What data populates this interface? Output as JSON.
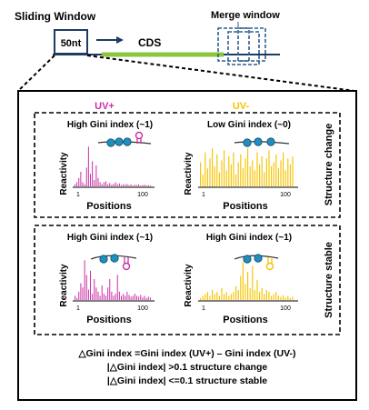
{
  "top": {
    "sliding_window_label": "Sliding Window",
    "window_box_label": "50nt",
    "cds_label": "CDS",
    "merge_window_label": "Merge window"
  },
  "columns": {
    "uv_plus": "UV+",
    "uv_minus": "UV-"
  },
  "panels": [
    {
      "row": "structure-change",
      "side_label": "Structure change",
      "plots": [
        {
          "title": "High Gini index (~1)",
          "ylabel": "Reactivity",
          "xlabel": "Positions",
          "ticks": [
            "1",
            "100"
          ],
          "color": "#cc2fa6",
          "values": [
            0.05,
            0.1,
            0.2,
            0.35,
            0.1,
            0.05,
            0.45,
            0.95,
            0.3,
            0.6,
            0.15,
            0.5,
            0.2,
            0.1,
            0.05,
            0.1,
            0.12,
            0.05,
            0.08,
            0.04,
            0.06,
            0.1,
            0.05,
            0.07,
            0.03,
            0.05,
            0.04,
            0.06,
            0.03,
            0.05,
            0.02,
            0.04,
            0.03,
            0.05,
            0.02,
            0.03,
            0.04,
            0.02,
            0.03,
            0.02
          ]
        },
        {
          "title": "Low Gini index (~0)",
          "ylabel": "Reactivity",
          "xlabel": "Positions",
          "ticks": [
            "1",
            "100"
          ],
          "color": "#f5c400",
          "values": [
            0.6,
            0.3,
            0.85,
            0.45,
            0.7,
            0.95,
            0.5,
            0.8,
            0.35,
            0.65,
            0.9,
            0.4,
            0.75,
            0.55,
            0.85,
            0.3,
            0.6,
            0.8,
            0.45,
            0.7,
            0.95,
            0.5,
            0.65,
            0.4,
            0.85,
            0.55,
            0.75,
            0.35,
            0.7,
            0.9,
            0.5,
            0.6,
            0.8,
            0.45,
            0.65,
            0.85,
            0.4,
            0.7,
            0.55,
            0.75
          ]
        }
      ]
    },
    {
      "row": "structure-stable",
      "side_label": "Structure stable",
      "plots": [
        {
          "title": "High Gini index (~1)",
          "ylabel": "Reactivity",
          "xlabel": "Positions",
          "ticks": [
            "1",
            "100"
          ],
          "color": "#cc2fa6",
          "values": [
            0.1,
            0.05,
            0.2,
            0.4,
            0.3,
            0.95,
            0.6,
            0.25,
            0.7,
            0.15,
            0.5,
            0.3,
            0.2,
            0.1,
            0.35,
            0.15,
            0.1,
            0.3,
            0.5,
            0.2,
            0.1,
            0.15,
            0.6,
            0.2,
            0.1,
            0.15,
            0.1,
            0.2,
            0.12,
            0.08,
            0.1,
            0.15,
            0.1,
            0.08,
            0.12,
            0.06,
            0.1,
            0.05,
            0.08,
            0.06
          ]
        },
        {
          "title": "High Gini index (~1)",
          "ylabel": "Reactivity",
          "xlabel": "Positions",
          "ticks": [
            "1",
            "100"
          ],
          "color": "#f5c400",
          "values": [
            0.05,
            0.1,
            0.15,
            0.2,
            0.1,
            0.25,
            0.15,
            0.2,
            0.1,
            0.3,
            0.15,
            0.2,
            0.1,
            0.15,
            0.2,
            0.35,
            0.25,
            0.6,
            0.95,
            0.4,
            0.7,
            0.3,
            0.85,
            0.25,
            0.5,
            0.2,
            0.3,
            0.15,
            0.25,
            0.2,
            0.1,
            0.15,
            0.2,
            0.1,
            0.08,
            0.12,
            0.06,
            0.1,
            0.05,
            0.08
          ]
        }
      ]
    }
  ],
  "formula": {
    "line1": "△Gini index =Gini index (UV+) – Gini index (UV-)",
    "line2": "|△Gini index| >0.1 structure change",
    "line3": "|△Gini index| <=0.1 structure stable"
  },
  "colors": {
    "navy": "#1f3b63",
    "cds_green": "#8cc63f",
    "merge_blue": "#2e5f8e",
    "uv_plus": "#cc2fa6",
    "uv_minus": "#f5c400",
    "rna_blue": "#1f8fbf"
  }
}
